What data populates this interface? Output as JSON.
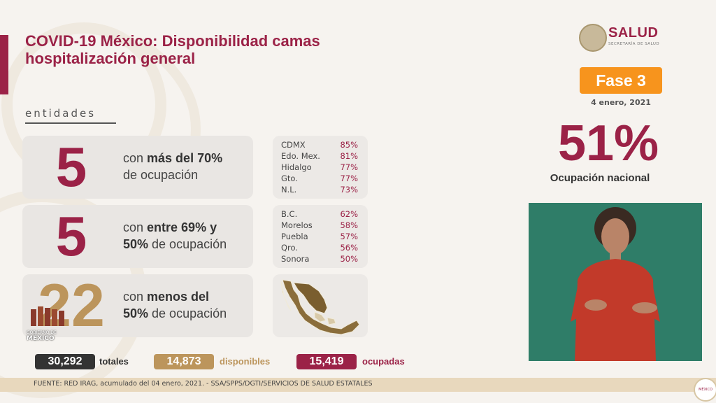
{
  "title": {
    "line1": "COVID-19 México: Disponibilidad camas",
    "line2": "hospitalización general"
  },
  "section_label": "entidades",
  "groups": [
    {
      "count": "5",
      "desc_pre": "con ",
      "desc_bold": "más del 70%",
      "desc_post": "de ocupación",
      "states": [
        {
          "name": "CDMX",
          "pct": "85%"
        },
        {
          "name": "Edo. Mex.",
          "pct": "81%"
        },
        {
          "name": "Hidalgo",
          "pct": "77%"
        },
        {
          "name": "Gto.",
          "pct": "77%"
        },
        {
          "name": "N.L.",
          "pct": "73%"
        }
      ]
    },
    {
      "count": "5",
      "desc_pre": "con ",
      "desc_bold": "entre 69% y",
      "desc_bold2": "50%",
      "desc_post": " de ocupación",
      "states": [
        {
          "name": "B.C.",
          "pct": "62%"
        },
        {
          "name": "Morelos",
          "pct": "58%"
        },
        {
          "name": "Puebla",
          "pct": "57%"
        },
        {
          "name": "Qro.",
          "pct": "56%"
        },
        {
          "name": "Sonora",
          "pct": "50%"
        }
      ]
    },
    {
      "count": "22",
      "desc_pre": "con ",
      "desc_bold": "menos del",
      "desc_bold2": "50%",
      "desc_post": " de ocupación",
      "map_icon": "mexico-map"
    }
  ],
  "totals": {
    "total_value": "30,292",
    "total_label": "totales",
    "available_value": "14,873",
    "available_label": "disponibles",
    "occupied_value": "15,419",
    "occupied_label": "ocupadas"
  },
  "footer": "FUENTE: RED IRAG, acumulado del 04 enero, 2021. -  SSA/SPPS/DGTI/SERVICIOS DE SALUD ESTATALES",
  "brand": {
    "name": "SALUD",
    "sub": "SECRETARÍA DE SALUD"
  },
  "phase": "Fase 3",
  "date": "4 enero, 2021",
  "national_pct": "51%",
  "national_label": "Ocupación nacional",
  "gob_logo": {
    "line1": "GOBIERNO DE",
    "line2": "MÉXICO"
  },
  "colors": {
    "primary": "#9b2247",
    "gold": "#bc955c",
    "dark": "#333333",
    "orange": "#f7941d",
    "interpreter_bg": "#2f7d68"
  }
}
